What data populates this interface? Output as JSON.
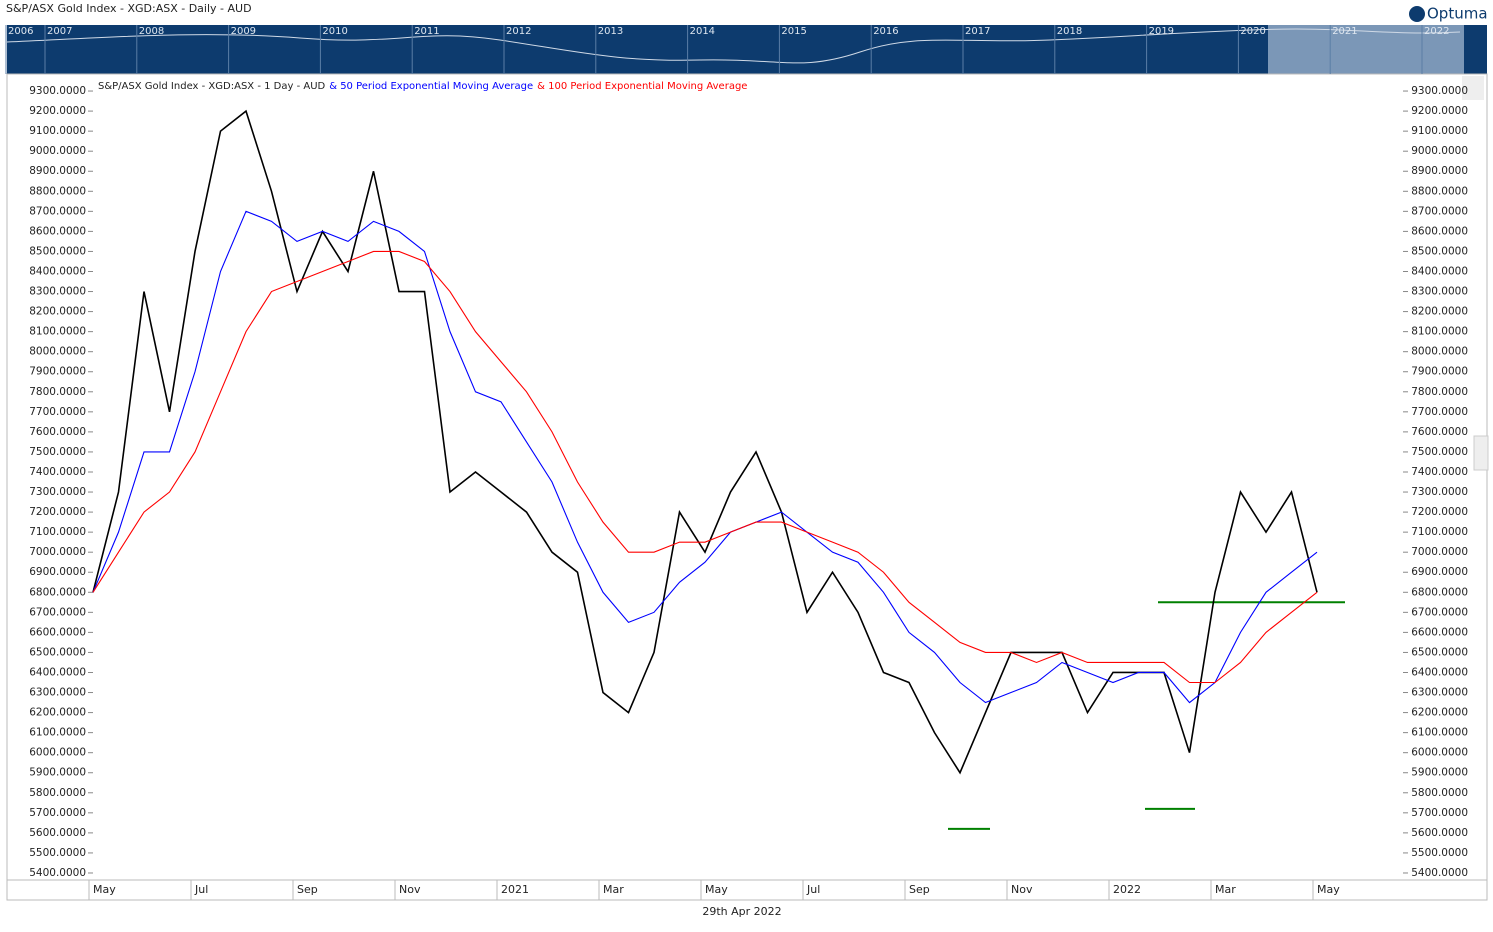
{
  "header": {
    "title": "S&P/ASX Gold Index - XGD:ASX - Daily - AUD",
    "brand": "Optuma",
    "years": [
      "2006",
      "2007",
      "2008",
      "2009",
      "2010",
      "2011",
      "2012",
      "2013",
      "2014",
      "2015",
      "2016",
      "2017",
      "2018",
      "2019",
      "2020",
      "2021",
      "2022"
    ]
  },
  "chart_data": {
    "type": "line",
    "categories": [
      "May",
      null,
      null,
      null,
      "Jul",
      null,
      null,
      null,
      "Sep",
      null,
      null,
      null,
      "Nov",
      null,
      null,
      null,
      "2021",
      null,
      null,
      null,
      "Mar",
      null,
      null,
      null,
      "May",
      null,
      null,
      null,
      "Jul",
      null,
      null,
      null,
      "Sep",
      null,
      null,
      null,
      "Nov",
      null,
      null,
      null,
      "2022",
      null,
      null,
      null,
      "Mar",
      null,
      null,
      null,
      "May"
    ],
    "series": [
      {
        "name": "S&P/ASX Gold Index - XGD:ASX - 1 Day - AUD",
        "color": "#000000",
        "values": [
          6800,
          7300,
          8300,
          7700,
          8500,
          9100,
          9200,
          8800,
          8300,
          8600,
          8400,
          8900,
          8300,
          8300,
          7300,
          7400,
          7300,
          7200,
          7000,
          6900,
          6300,
          6200,
          6500,
          7200,
          7000,
          7300,
          7500,
          7200,
          6700,
          6900,
          6700,
          6400,
          6350,
          6100,
          5900,
          6200,
          6500,
          6500,
          6500,
          6200,
          6400,
          6400,
          6400,
          6000,
          6800,
          7300,
          7100,
          7300,
          6800
        ]
      },
      {
        "name": "& 50 Period Exponential Moving Average",
        "color": "#0000ff",
        "values": [
          6800,
          7100,
          7500,
          7500,
          7900,
          8400,
          8700,
          8650,
          8550,
          8600,
          8550,
          8650,
          8600,
          8500,
          8100,
          7800,
          7750,
          7550,
          7350,
          7050,
          6800,
          6650,
          6700,
          6850,
          6950,
          7100,
          7150,
          7200,
          7100,
          7000,
          6950,
          6800,
          6600,
          6500,
          6350,
          6250,
          6300,
          6350,
          6450,
          6400,
          6350,
          6400,
          6400,
          6250,
          6350,
          6600,
          6800,
          6900,
          7000
        ]
      },
      {
        "name": "& 100 Period Exponential Moving Average",
        "color": "#ff0000",
        "values": [
          6800,
          7000,
          7200,
          7300,
          7500,
          7800,
          8100,
          8300,
          8350,
          8400,
          8450,
          8500,
          8500,
          8450,
          8300,
          8100,
          7950,
          7800,
          7600,
          7350,
          7150,
          7000,
          7000,
          7050,
          7050,
          7100,
          7150,
          7150,
          7100,
          7050,
          7000,
          6900,
          6750,
          6650,
          6550,
          6500,
          6500,
          6450,
          6500,
          6450,
          6450,
          6450,
          6450,
          6350,
          6350,
          6450,
          6600,
          6700,
          6800
        ]
      }
    ],
    "levels": [
      {
        "value": 6750,
        "color": "#008000"
      },
      {
        "value": 5620,
        "color": "#008000"
      },
      {
        "value": 5720,
        "color": "#008000"
      }
    ],
    "ylim": [
      5365,
      9385
    ],
    "yticks": [
      {
        "value": 5400,
        "label": "5400.0000"
      },
      {
        "value": 5500,
        "label": "5500.0000"
      },
      {
        "value": 5600,
        "label": "5600.0000"
      },
      {
        "value": 5700,
        "label": "5700.0000"
      },
      {
        "value": 5800,
        "label": "5800.0000"
      },
      {
        "value": 5900,
        "label": "5900.0000"
      },
      {
        "value": 6000,
        "label": "6000.0000"
      },
      {
        "value": 6100,
        "label": "6100.0000"
      },
      {
        "value": 6200,
        "label": "6200.0000"
      },
      {
        "value": 6300,
        "label": "6300.0000"
      },
      {
        "value": 6400,
        "label": "6400.0000"
      },
      {
        "value": 6500,
        "label": "6500.0000"
      },
      {
        "value": 6600,
        "label": "6600.0000"
      },
      {
        "value": 6700,
        "label": "6700.0000"
      },
      {
        "value": 6800,
        "label": "6800.0000"
      },
      {
        "value": 6900,
        "label": "6900.0000"
      },
      {
        "value": 7000,
        "label": "7000.0000"
      },
      {
        "value": 7100,
        "label": "7100.0000"
      },
      {
        "value": 7200,
        "label": "7200.0000"
      },
      {
        "value": 7300,
        "label": "7300.0000"
      },
      {
        "value": 7400,
        "label": "7400.0000"
      },
      {
        "value": 7500,
        "label": "7500.0000"
      },
      {
        "value": 7600,
        "label": "7600.0000"
      },
      {
        "value": 7700,
        "label": "7700.0000"
      },
      {
        "value": 7800,
        "label": "7800.0000"
      },
      {
        "value": 7900,
        "label": "7900.0000"
      },
      {
        "value": 8000,
        "label": "8000.0000"
      },
      {
        "value": 8100,
        "label": "8100.0000"
      },
      {
        "value": 8200,
        "label": "8200.0000"
      },
      {
        "value": 8300,
        "label": "8300.0000"
      },
      {
        "value": 8400,
        "label": "8400.0000"
      },
      {
        "value": 8500,
        "label": "8500.0000"
      },
      {
        "value": 8600,
        "label": "8600.0000"
      },
      {
        "value": 8700,
        "label": "8700.0000"
      },
      {
        "value": 8800,
        "label": "8800.0000"
      },
      {
        "value": 8900,
        "label": "8900.0000"
      },
      {
        "value": 9000,
        "label": "9000.0000"
      },
      {
        "value": 9100,
        "label": "9100.0000"
      },
      {
        "value": 9200,
        "label": "9200.0000"
      },
      {
        "value": 9300,
        "label": "9300.0000"
      }
    ],
    "xlabel": "29th Apr 2022"
  }
}
